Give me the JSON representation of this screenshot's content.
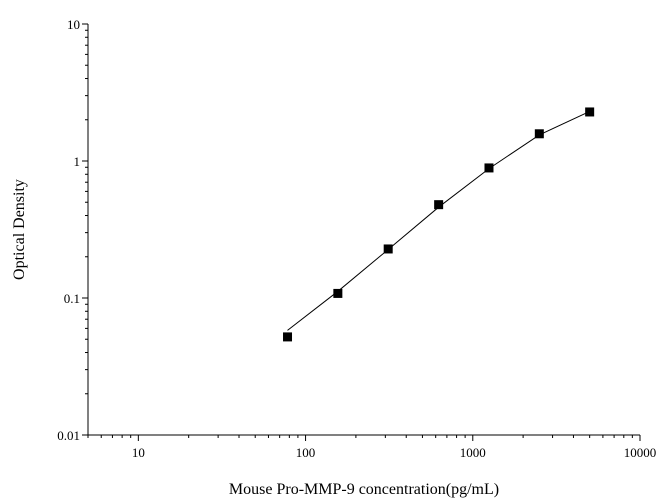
{
  "chart_data": {
    "type": "scatter",
    "title": "",
    "xlabel": "Mouse Pro-MMP-9 concentration(pg/mL)",
    "ylabel": "Optical Density",
    "x_scale": "log",
    "y_scale": "log",
    "xlim": [
      5,
      10000
    ],
    "ylim": [
      0.01,
      10
    ],
    "x_ticks": [
      {
        "value": 10,
        "label": "10"
      },
      {
        "value": 100,
        "label": "100"
      },
      {
        "value": 1000,
        "label": "1000"
      },
      {
        "value": 10000,
        "label": "10000"
      }
    ],
    "y_ticks": [
      {
        "value": 0.01,
        "label": "0.01"
      },
      {
        "value": 0.1,
        "label": "0.1"
      },
      {
        "value": 1,
        "label": "1"
      },
      {
        "value": 10,
        "label": "10"
      }
    ],
    "grid": false,
    "legend": "none",
    "points": {
      "x": [
        78,
        156,
        312,
        625,
        1250,
        2500,
        5000
      ],
      "y": [
        0.052,
        0.108,
        0.228,
        0.48,
        0.89,
        1.58,
        2.28
      ]
    },
    "fit_curve": {
      "x": [
        78,
        156,
        312,
        625,
        1250,
        2500,
        5000
      ],
      "y": [
        0.058,
        0.112,
        0.226,
        0.46,
        0.88,
        1.55,
        2.3
      ]
    },
    "colors": {
      "axis": "#000000",
      "marker": "#000000",
      "line": "#000000"
    }
  }
}
